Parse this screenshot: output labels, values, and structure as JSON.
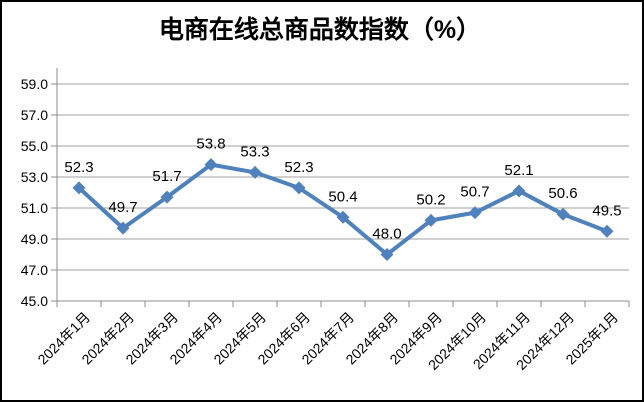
{
  "chart_data": {
    "type": "line",
    "title": "电商在线总商品数指数（%）",
    "categories": [
      "2024年1月",
      "2024年2月",
      "2024年3月",
      "2024年4月",
      "2024年5月",
      "2024年6月",
      "2024年7月",
      "2024年8月",
      "2024年9月",
      "2024年10月",
      "2024年11月",
      "2024年12月",
      "2025年1月"
    ],
    "values": [
      52.3,
      49.7,
      51.7,
      53.8,
      53.3,
      52.3,
      50.4,
      48.0,
      50.2,
      50.7,
      52.1,
      50.6,
      49.5
    ],
    "data_labels": [
      "52.3",
      "49.7",
      "51.7",
      "53.8",
      "53.3",
      "52.3",
      "50.4",
      "48.0",
      "50.2",
      "50.7",
      "52.1",
      "50.6",
      "49.5"
    ],
    "ytick_labels": [
      "45.0",
      "47.0",
      "49.0",
      "51.0",
      "53.0",
      "55.0",
      "57.0",
      "59.0"
    ],
    "ylim": [
      45.0,
      59.0
    ],
    "grid": true,
    "legend": "none",
    "marker": "diamond",
    "colors": {
      "line": "#4F81BD",
      "marker": "#4F81BD",
      "grid": "#A0A0A0",
      "axis": "#8C8C8C",
      "text": "#000000",
      "background": "#FFFFFF",
      "border": "#000000"
    }
  }
}
